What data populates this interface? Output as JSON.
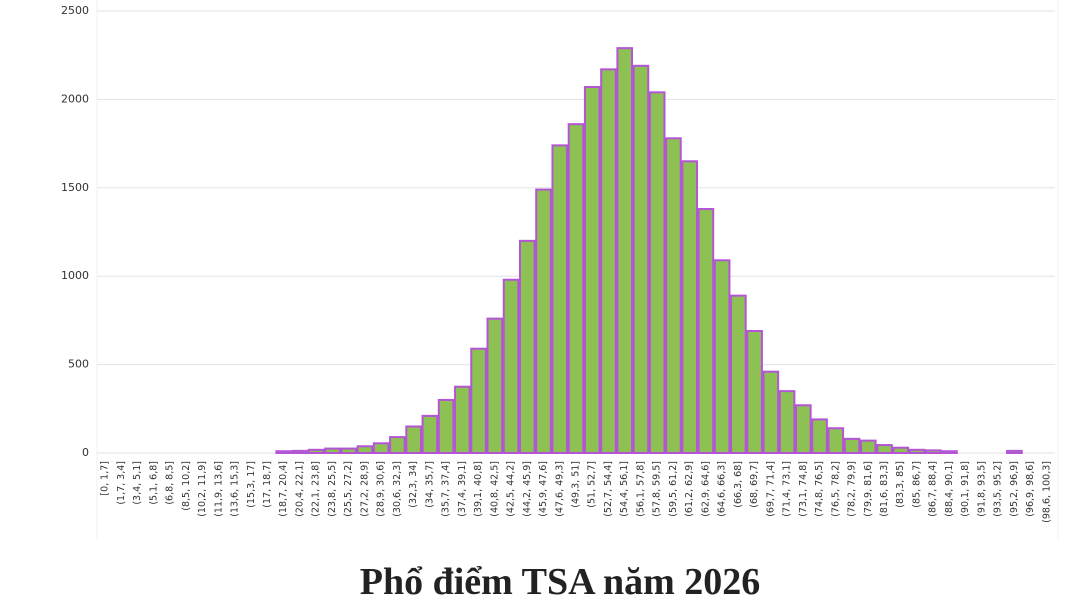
{
  "chart_data": {
    "type": "bar",
    "title": "Phổ điểm TSA năm 2026",
    "categories": [
      "[0, 1,7]",
      "(1,7, 3,4]",
      "(3,4, 5,1]",
      "(5,1, 6,8]",
      "(6,8, 8,5]",
      "(8,5, 10,2]",
      "(10,2, 11,9]",
      "(11,9, 13,6]",
      "(13,6, 15,3]",
      "(15,3, 17]",
      "(17, 18,7]",
      "(18,7, 20,4]",
      "(20,4, 22,1]",
      "(22,1, 23,8]",
      "(23,8, 25,5]",
      "(25,5, 27,2]",
      "(27,2, 28,9]",
      "(28,9, 30,6]",
      "(30,6, 32,3]",
      "(32,3, 34]",
      "(34, 35,7]",
      "(35,7, 37,4]",
      "(37,4, 39,1]",
      "(39,1, 40,8]",
      "(40,8, 42,5]",
      "(42,5, 44,2]",
      "(44,2, 45,9]",
      "(45,9, 47,6]",
      "(47,6, 49,3]",
      "(49,3, 51]",
      "(51, 52,7]",
      "(52,7, 54,4]",
      "(54,4, 56,1]",
      "(56,1, 57,8]",
      "(57,8, 59,5]",
      "(59,5, 61,2]",
      "(61,2, 62,9]",
      "(62,9, 64,6]",
      "(64,6, 66,3]",
      "(66,3, 68]",
      "(68, 69,7]",
      "(69,7, 71,4]",
      "(71,4, 73,1]",
      "(73,1, 74,8]",
      "(74,8, 76,5]",
      "(76,5, 78,2]",
      "(78,2, 79,9]",
      "(79,9, 81,6]",
      "(81,6, 83,3]",
      "(83,3, 85]",
      "(85, 86,7]",
      "(86,7, 88,4]",
      "(88,4, 90,1]",
      "(90,1, 91,8]",
      "(91,8, 93,5]",
      "(93,5, 95,2]",
      "(95,2, 96,9]",
      "(96,9, 98,6]",
      "(98,6, 100,3]"
    ],
    "values": [
      0,
      0,
      0,
      0,
      0,
      0,
      0,
      0,
      0,
      0,
      0,
      10,
      12,
      18,
      25,
      25,
      38,
      55,
      90,
      150,
      210,
      300,
      375,
      590,
      760,
      980,
      1200,
      1490,
      1740,
      1860,
      2070,
      2170,
      2290,
      2190,
      2040,
      1780,
      1650,
      1380,
      1090,
      890,
      690,
      460,
      350,
      270,
      190,
      140,
      80,
      70,
      45,
      30,
      18,
      15,
      10,
      0,
      0,
      0,
      12,
      0,
      0
    ],
    "color": "#8dc153",
    "edgecolor": "#b455d6",
    "ylim": [
      0,
      2500
    ],
    "yticks": [
      0,
      500,
      1000,
      1500,
      2000,
      2500
    ],
    "grid": true
  }
}
